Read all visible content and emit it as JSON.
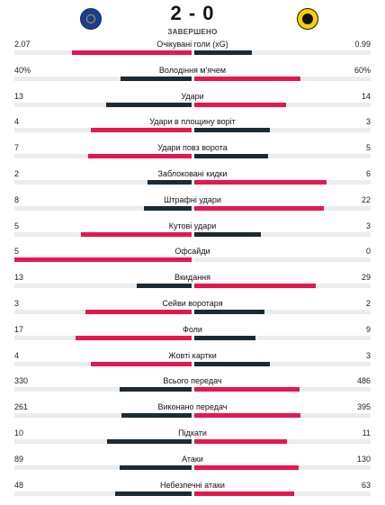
{
  "match": {
    "score": "2 - 0",
    "status": "ЗАВЕРШЕНО",
    "home_logo_icon": "chelsea-crest",
    "away_logo_icon": "borussia-dortmund-crest"
  },
  "colors": {
    "leader": "#e4174f",
    "trailer": "#1c2a33",
    "track": "#ececec"
  },
  "stats": [
    {
      "label": "Очікувані голи (xG)",
      "home": "2.07",
      "away": "0.99",
      "home_share": 0.676,
      "away_share": 0.324
    },
    {
      "label": "Володіння м'ячем",
      "home": "40%",
      "away": "60%",
      "home_share": 0.4,
      "away_share": 0.6
    },
    {
      "label": "Удари",
      "home": "13",
      "away": "14",
      "home_share": 0.481,
      "away_share": 0.519
    },
    {
      "label": "Удари в площину воріт",
      "home": "4",
      "away": "3",
      "home_share": 0.571,
      "away_share": 0.429
    },
    {
      "label": "Удари повз ворота",
      "home": "7",
      "away": "5",
      "home_share": 0.583,
      "away_share": 0.417
    },
    {
      "label": "Заблоковані кидки",
      "home": "2",
      "away": "6",
      "home_share": 0.25,
      "away_share": 0.75
    },
    {
      "label": "Штрафні удари",
      "home": "8",
      "away": "22",
      "home_share": 0.267,
      "away_share": 0.733
    },
    {
      "label": "Кутові удари",
      "home": "5",
      "away": "3",
      "home_share": 0.625,
      "away_share": 0.375
    },
    {
      "label": "Офсайди",
      "home": "5",
      "away": "0",
      "home_share": 1.0,
      "away_share": 0.0
    },
    {
      "label": "Вкидання",
      "home": "13",
      "away": "29",
      "home_share": 0.31,
      "away_share": 0.69
    },
    {
      "label": "Сейви воротаря",
      "home": "3",
      "away": "2",
      "home_share": 0.6,
      "away_share": 0.4
    },
    {
      "label": "Фоли",
      "home": "17",
      "away": "9",
      "home_share": 0.654,
      "away_share": 0.346
    },
    {
      "label": "Жовті картки",
      "home": "4",
      "away": "3",
      "home_share": 0.571,
      "away_share": 0.429
    },
    {
      "label": "Всього передач",
      "home": "330",
      "away": "486",
      "home_share": 0.404,
      "away_share": 0.596
    },
    {
      "label": "Виконано передач",
      "home": "261",
      "away": "395",
      "home_share": 0.398,
      "away_share": 0.602
    },
    {
      "label": "Підкати",
      "home": "10",
      "away": "11",
      "home_share": 0.476,
      "away_share": 0.524
    },
    {
      "label": "Атаки",
      "home": "89",
      "away": "130",
      "home_share": 0.406,
      "away_share": 0.594
    },
    {
      "label": "Небезпечні атаки",
      "home": "48",
      "away": "63",
      "home_share": 0.432,
      "away_share": 0.568
    }
  ]
}
